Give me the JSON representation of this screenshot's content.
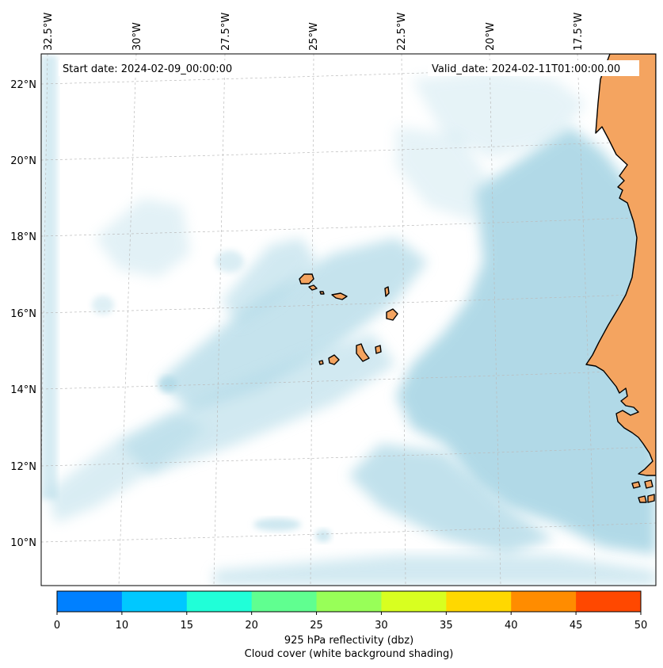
{
  "header": {
    "start_date": "Start date: 2024-02-09_00:00:00",
    "valid_date": "Valid_date: 2024-02-11T01:00:00.00"
  },
  "map": {
    "lon_labels": [
      "32.5°W",
      "30°W",
      "27.5°W",
      "25°W",
      "22.5°W",
      "20°W",
      "17.5°W"
    ],
    "lat_labels": [
      "22°N",
      "20°N",
      "18°N",
      "16°N",
      "14°N",
      "12°N",
      "10°N"
    ],
    "colors": {
      "land": "#f4a460",
      "cloud": "#add8e6",
      "grid": "#bbbbbb"
    }
  },
  "colorbar": {
    "ticks": [
      "0",
      "10",
      "15",
      "20",
      "25",
      "30",
      "35",
      "40",
      "45",
      "50"
    ],
    "colors": [
      "#0080ff",
      "#00c8ff",
      "#20ffd8",
      "#60ff90",
      "#98ff58",
      "#d8ff20",
      "#ffd800",
      "#ff8c00",
      "#ff4800"
    ],
    "label_line1": "925 hPa reflectivity (dbz)",
    "label_line2": "Cloud cover (white background shading)"
  }
}
